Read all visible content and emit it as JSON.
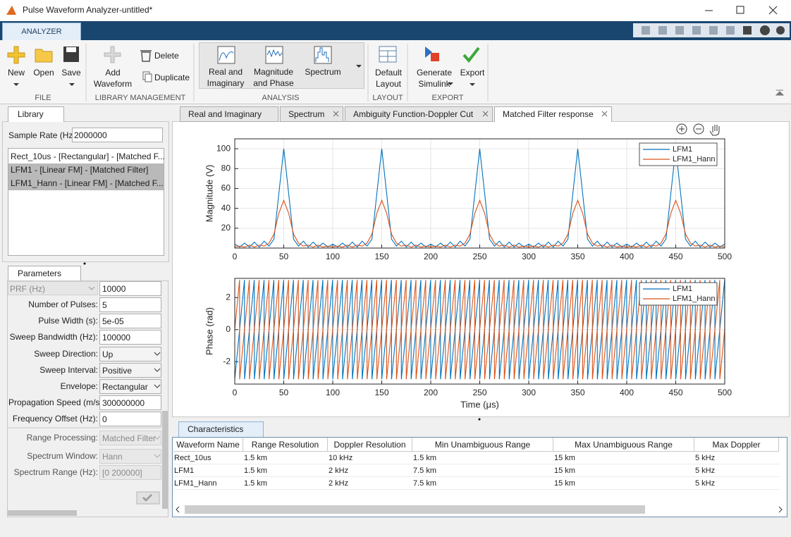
{
  "window": {
    "title": "Pulse Waveform Analyzer-untitled*"
  },
  "ribbon": {
    "tab": "ANALYZER",
    "groups": [
      {
        "label": "FILE",
        "buttons": [
          "New",
          "Open",
          "Save"
        ]
      },
      {
        "label": "LIBRARY MANAGEMENT",
        "buttons": [
          "Add Waveform",
          "Delete",
          "Duplicate"
        ]
      },
      {
        "label": "ANALYSIS",
        "buttons": [
          "Real and Imaginary",
          "Magnitude and Phase",
          "Spectrum"
        ]
      },
      {
        "label": "LAYOUT",
        "buttons": [
          "Default Layout"
        ]
      },
      {
        "label": "EXPORT",
        "buttons": [
          "Generate Simulink",
          "Export"
        ]
      }
    ]
  },
  "library": {
    "tab": "Library",
    "sample_rate_label": "Sample Rate (Hz):",
    "sample_rate": "2000000",
    "items": [
      "Rect_10us - [Rectangular] - [Matched F...",
      "LFM1 - [Linear FM] - [Matched Filter]",
      "LFM1_Hann - [Linear FM] - [Matched F..."
    ]
  },
  "parameters": {
    "tab": "Parameters",
    "rows": [
      {
        "label": "PRF (Hz)",
        "value": "10000"
      },
      {
        "label": "Number of Pulses:",
        "value": "5"
      },
      {
        "label": "Pulse Width (s):",
        "value": "5e-05"
      },
      {
        "label": "Sweep Bandwidth (Hz):",
        "value": "100000"
      },
      {
        "label": "Sweep Direction:",
        "value": "Up"
      },
      {
        "label": "Sweep Interval:",
        "value": "Positive"
      },
      {
        "label": "Envelope:",
        "value": "Rectangular"
      },
      {
        "label": "Propagation Speed (m/s):",
        "value": "300000000"
      },
      {
        "label": "Frequency Offset (Hz):",
        "value": "0"
      },
      {
        "label": "Range Processing:",
        "value": "Matched Filter"
      },
      {
        "label": "Spectrum Window:",
        "value": "Hann"
      },
      {
        "label": "Spectrum Range (Hz):",
        "value": "[0 200000]"
      }
    ]
  },
  "plot_tabs": [
    "Real and Imaginary",
    "Spectrum",
    "Ambiguity Function-Doppler Cut",
    "Matched Filter response"
  ],
  "chart_data": [
    {
      "type": "line",
      "ylabel": "Magnitude (V)",
      "x": [
        0,
        5,
        10,
        15,
        20,
        25,
        30,
        35,
        40,
        45,
        50,
        55,
        60,
        65,
        70,
        75,
        80,
        85,
        90,
        95,
        100,
        105,
        110,
        115,
        120,
        125,
        130,
        135,
        140,
        145,
        150,
        155,
        160,
        165,
        170,
        175,
        180,
        185,
        190,
        195,
        200,
        205,
        210,
        215,
        220,
        225,
        230,
        235,
        240,
        245,
        250,
        255,
        260,
        265,
        270,
        275,
        280,
        285,
        290,
        295,
        300,
        305,
        310,
        315,
        320,
        325,
        330,
        335,
        340,
        345,
        350,
        355,
        360,
        365,
        370,
        375,
        380,
        385,
        390,
        395,
        400,
        405,
        410,
        415,
        420,
        425,
        430,
        435,
        440,
        445,
        450,
        455,
        460,
        465,
        470,
        475,
        480,
        485,
        490,
        495,
        500
      ],
      "xlim": [
        0,
        500
      ],
      "xticks": [
        0,
        50,
        100,
        150,
        200,
        250,
        300,
        350,
        400,
        450,
        500
      ],
      "ylim": [
        0,
        110
      ],
      "yticks": [
        20,
        40,
        60,
        80,
        100
      ],
      "grid": true,
      "legend": "northeast",
      "series": [
        {
          "name": "LFM1",
          "color": "#0072bd",
          "values": [
            4,
            1,
            5,
            1,
            6,
            1,
            7,
            2,
            9,
            55,
            100,
            55,
            9,
            2,
            7,
            1,
            6,
            1,
            5,
            1,
            4,
            1,
            5,
            1,
            6,
            1,
            7,
            2,
            9,
            55,
            100,
            55,
            9,
            2,
            7,
            1,
            6,
            1,
            5,
            1,
            4,
            1,
            5,
            1,
            6,
            1,
            7,
            2,
            9,
            55,
            100,
            55,
            9,
            2,
            7,
            1,
            6,
            1,
            5,
            1,
            4,
            1,
            5,
            1,
            6,
            1,
            7,
            2,
            9,
            55,
            100,
            55,
            9,
            2,
            7,
            1,
            6,
            1,
            5,
            1,
            4,
            1,
            5,
            1,
            6,
            1,
            7,
            2,
            9,
            55,
            100,
            55,
            9,
            2,
            7,
            1,
            6,
            1,
            5,
            1,
            4
          ]
        },
        {
          "name": "LFM1_Hann",
          "color": "#d95319",
          "values": [
            1,
            2,
            1,
            3,
            1,
            3,
            2,
            5,
            14,
            35,
            48,
            35,
            14,
            5,
            2,
            3,
            1,
            3,
            1,
            2,
            1,
            2,
            1,
            3,
            1,
            3,
            2,
            5,
            14,
            35,
            48,
            35,
            14,
            5,
            2,
            3,
            1,
            3,
            1,
            2,
            1,
            2,
            1,
            3,
            1,
            3,
            2,
            5,
            14,
            35,
            48,
            35,
            14,
            5,
            2,
            3,
            1,
            3,
            1,
            2,
            1,
            2,
            1,
            3,
            1,
            3,
            2,
            5,
            14,
            35,
            48,
            35,
            14,
            5,
            2,
            3,
            1,
            3,
            1,
            2,
            1,
            2,
            1,
            3,
            1,
            3,
            2,
            5,
            14,
            35,
            48,
            35,
            14,
            5,
            2,
            3,
            1,
            3,
            1,
            2,
            1
          ]
        }
      ]
    },
    {
      "type": "line",
      "xlabel": "Time (μs)",
      "ylabel": "Phase (rad)",
      "xlim": [
        0,
        500
      ],
      "xticks": [
        0,
        50,
        100,
        150,
        200,
        250,
        300,
        350,
        400,
        450,
        500
      ],
      "ylim": [
        -3.4,
        3.2
      ],
      "yticks": [
        -2,
        0,
        2
      ],
      "grid": true,
      "legend": "northeast",
      "series": [
        {
          "name": "LFM1",
          "color": "#0072bd",
          "x": [
            0,
            9.9,
            10,
            19.9,
            20,
            29.9,
            30,
            39.9,
            40,
            49.9,
            50,
            59.9,
            60,
            69.9,
            70,
            79.9,
            80,
            89.9,
            90,
            99.9,
            100,
            109.9,
            110,
            119.9,
            120,
            129.9,
            130,
            139.9,
            140,
            149.9,
            150,
            159.9,
            160,
            169.9,
            170,
            179.9,
            180,
            189.9,
            190,
            199.9,
            200,
            209.9,
            210,
            219.9,
            220,
            229.9,
            230,
            239.9,
            240,
            249.9,
            250,
            259.9,
            260,
            269.9,
            270,
            279.9,
            280,
            289.9,
            290,
            299.9,
            300,
            309.9,
            310,
            319.9,
            320,
            329.9,
            330,
            339.9,
            340,
            349.9,
            350,
            359.9,
            360,
            369.9,
            370,
            379.9,
            380,
            389.9,
            390,
            399.9,
            400,
            409.9,
            410,
            419.9,
            420,
            429.9,
            430,
            439.9,
            440,
            449.9,
            450,
            459.9,
            460,
            469.9,
            470,
            479.9,
            480,
            489.9,
            490,
            499.9,
            500
          ],
          "values": [
            -3.1,
            3.1,
            -3.1,
            3.1,
            -3.1,
            3.1,
            -3.1,
            3.1,
            -3.1,
            3.1,
            -3.1,
            3.1,
            -3.1,
            3.1,
            -3.1,
            3.1,
            -3.1,
            3.1,
            -3.1,
            3.1,
            -3.1,
            3.1,
            -3.1,
            3.1,
            -3.1,
            3.1,
            -3.1,
            3.1,
            -3.1,
            3.1,
            -3.1,
            3.1,
            -3.1,
            3.1,
            -3.1,
            3.1,
            -3.1,
            3.1,
            -3.1,
            3.1,
            -3.1,
            3.1,
            -3.1,
            3.1,
            -3.1,
            3.1,
            -3.1,
            3.1,
            -3.1,
            3.1,
            -3.1,
            3.1,
            -3.1,
            3.1,
            -3.1,
            3.1,
            -3.1,
            3.1,
            -3.1,
            3.1,
            -3.1,
            3.1,
            -3.1,
            3.1,
            -3.1,
            3.1,
            -3.1,
            3.1,
            -3.1,
            3.1,
            -3.1,
            3.1,
            -3.1,
            3.1,
            -3.1,
            3.1,
            -3.1,
            3.1,
            -3.1,
            3.1,
            -3.1,
            3.1,
            -3.1,
            3.1,
            -3.1,
            3.1,
            -3.1,
            3.1,
            -3.1,
            3.1,
            -3.1,
            3.1,
            -3.1,
            3.1,
            -3.1,
            3.1,
            -3.1,
            3.1,
            -3.1,
            3.1,
            -3.1
          ]
        },
        {
          "name": "LFM1_Hann",
          "color": "#d95319",
          "x": [
            0,
            4.9,
            5,
            14.9,
            15,
            24.9,
            25,
            34.9,
            35,
            44.9,
            45,
            54.9,
            55,
            64.9,
            65,
            74.9,
            75,
            84.9,
            85,
            94.9,
            95,
            104.9,
            105,
            114.9,
            115,
            124.9,
            125,
            134.9,
            135,
            144.9,
            145,
            154.9,
            155,
            164.9,
            165,
            174.9,
            175,
            184.9,
            185,
            194.9,
            195,
            204.9,
            205,
            214.9,
            215,
            224.9,
            225,
            234.9,
            235,
            244.9,
            245,
            254.9,
            255,
            264.9,
            265,
            274.9,
            275,
            284.9,
            285,
            294.9,
            295,
            304.9,
            305,
            314.9,
            315,
            324.9,
            325,
            334.9,
            335,
            344.9,
            345,
            354.9,
            355,
            364.9,
            365,
            374.9,
            375,
            384.9,
            385,
            394.9,
            395,
            404.9,
            405,
            414.9,
            415,
            424.9,
            425,
            434.9,
            435,
            444.9,
            445,
            454.9,
            455,
            464.9,
            465,
            474.9,
            475,
            484.9,
            485,
            494.9,
            495,
            500
          ],
          "values": [
            0,
            3.1,
            -3.1,
            3.1,
            -3.1,
            3.1,
            -3.1,
            3.1,
            -3.1,
            3.1,
            -3.1,
            3.1,
            -3.1,
            3.1,
            -3.1,
            3.1,
            -3.1,
            3.1,
            -3.1,
            3.1,
            -3.1,
            3.1,
            -3.1,
            3.1,
            -3.1,
            3.1,
            -3.1,
            3.1,
            -3.1,
            3.1,
            -3.1,
            3.1,
            -3.1,
            3.1,
            -3.1,
            3.1,
            -3.1,
            3.1,
            -3.1,
            3.1,
            -3.1,
            3.1,
            -3.1,
            3.1,
            -3.1,
            3.1,
            -3.1,
            3.1,
            -3.1,
            3.1,
            -3.1,
            3.1,
            -3.1,
            3.1,
            -3.1,
            3.1,
            -3.1,
            3.1,
            -3.1,
            3.1,
            -3.1,
            3.1,
            -3.1,
            3.1,
            -3.1,
            3.1,
            -3.1,
            3.1,
            -3.1,
            3.1,
            -3.1,
            3.1,
            -3.1,
            3.1,
            -3.1,
            3.1,
            -3.1,
            3.1,
            -3.1,
            3.1,
            -3.1,
            3.1,
            -3.1,
            3.1,
            -3.1,
            3.1,
            -3.1,
            3.1,
            -3.1,
            3.1,
            -3.1,
            3.1,
            -3.1,
            3.1,
            -3.1,
            3.1,
            -3.1,
            3.1,
            -3.1,
            3.1,
            -3.1,
            0
          ]
        }
      ]
    }
  ],
  "characteristics": {
    "tab": "Characteristics",
    "columns": [
      "Waveform Name",
      "Range Resolution",
      "Doppler Resolution",
      "Min Unambiguous Range",
      "Max Unambiguous Range",
      "Max Doppler"
    ],
    "rows": [
      [
        "Rect_10us",
        "1.5 km",
        "10 kHz",
        "1.5 km",
        "15 km",
        "5 kHz"
      ],
      [
        "LFM1",
        "1.5 km",
        "2 kHz",
        "7.5 km",
        "15 km",
        "5 kHz"
      ],
      [
        "LFM1_Hann",
        "1.5 km",
        "2 kHz",
        "7.5 km",
        "15 km",
        "5 kHz"
      ]
    ]
  }
}
